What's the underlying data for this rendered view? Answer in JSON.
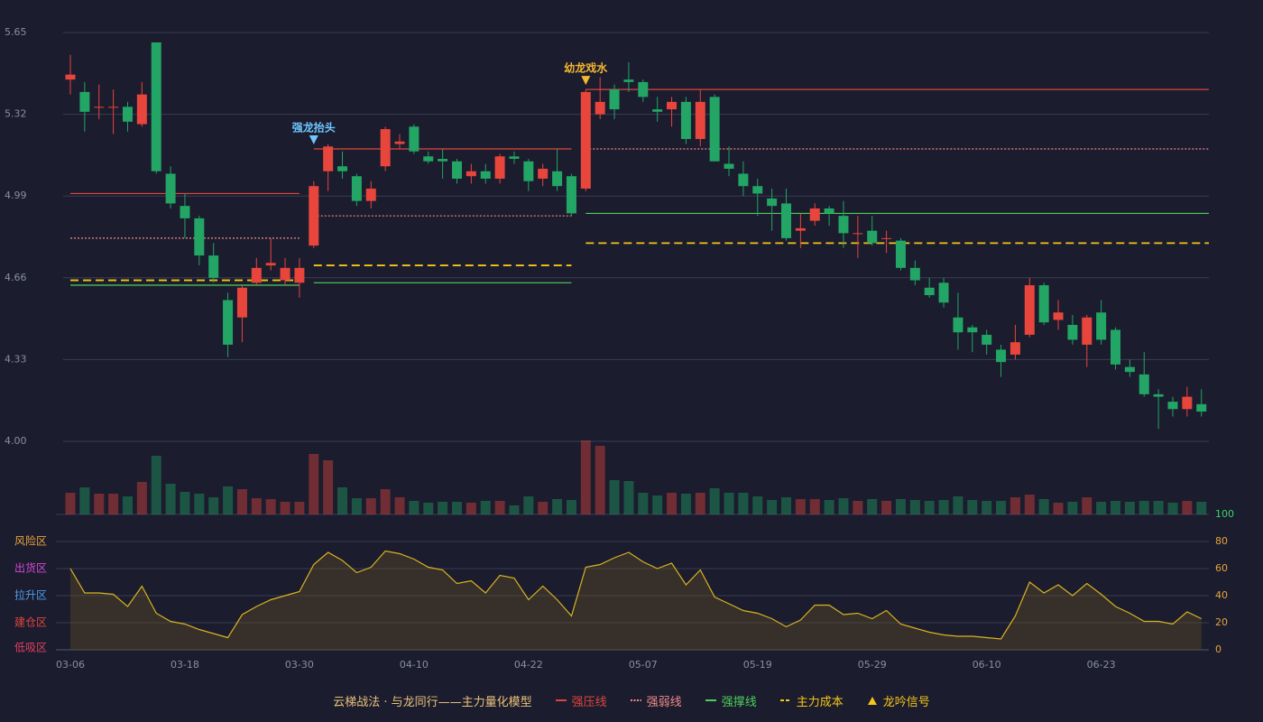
{
  "chart_data": {
    "type": "candlestick",
    "categories": [
      "03-06",
      null,
      null,
      null,
      null,
      null,
      null,
      null,
      "03-18",
      null,
      null,
      null,
      null,
      null,
      null,
      null,
      "03-30",
      null,
      null,
      null,
      null,
      null,
      null,
      null,
      "04-10",
      null,
      null,
      null,
      null,
      null,
      null,
      null,
      "04-22",
      null,
      null,
      null,
      null,
      null,
      null,
      null,
      "05-07",
      null,
      null,
      null,
      null,
      null,
      null,
      null,
      "05-19",
      null,
      null,
      null,
      null,
      null,
      null,
      null,
      "05-29",
      null,
      null,
      null,
      null,
      null,
      null,
      null,
      "06-10",
      null,
      null,
      null,
      null,
      null,
      null,
      null,
      "06-23",
      null,
      null,
      null,
      null,
      null,
      null,
      null
    ],
    "open": [
      5.46,
      5.41,
      5.35,
      5.35,
      5.35,
      5.28,
      5.61,
      5.08,
      4.95,
      4.9,
      4.75,
      4.57,
      4.5,
      4.64,
      4.71,
      4.65,
      4.64,
      4.79,
      5.09,
      5.11,
      5.07,
      4.97,
      5.11,
      5.2,
      5.27,
      5.15,
      5.14,
      5.13,
      5.07,
      5.09,
      5.06,
      5.15,
      5.13,
      5.06,
      5.09,
      5.07,
      5.02,
      5.32,
      5.42,
      5.46,
      5.45,
      5.34,
      5.34,
      5.37,
      5.22,
      5.39,
      5.12,
      5.08,
      5.03,
      4.98,
      4.96,
      4.85,
      4.89,
      4.94,
      4.91,
      4.84,
      4.85,
      4.82,
      4.81,
      4.7,
      4.62,
      4.64,
      4.5,
      4.46,
      4.43,
      4.37,
      4.35,
      4.43,
      4.63,
      4.49,
      4.47,
      4.39,
      4.52,
      4.45,
      4.3,
      4.27,
      4.19,
      4.16,
      4.13,
      4.15
    ],
    "high": [
      5.56,
      5.45,
      5.44,
      5.42,
      5.37,
      5.45,
      5.61,
      5.11,
      5.0,
      4.91,
      4.8,
      4.6,
      4.63,
      4.74,
      4.82,
      4.74,
      4.74,
      5.05,
      5.2,
      5.17,
      5.08,
      5.05,
      5.27,
      5.24,
      5.28,
      5.17,
      5.18,
      5.14,
      5.12,
      5.12,
      5.16,
      5.17,
      5.14,
      5.12,
      5.18,
      5.08,
      5.42,
      5.47,
      5.44,
      5.53,
      5.46,
      5.39,
      5.39,
      5.39,
      5.42,
      5.4,
      5.19,
      5.13,
      5.06,
      5.02,
      5.02,
      4.92,
      4.96,
      4.95,
      4.97,
      4.91,
      4.91,
      4.85,
      4.82,
      4.73,
      4.66,
      4.66,
      4.6,
      4.47,
      4.45,
      4.39,
      4.47,
      4.66,
      4.64,
      4.57,
      4.51,
      4.51,
      4.57,
      4.46,
      4.33,
      4.36,
      4.21,
      4.18,
      4.22,
      4.21
    ],
    "low": [
      5.4,
      5.25,
      5.3,
      5.24,
      5.25,
      5.27,
      5.08,
      4.94,
      4.82,
      4.71,
      4.64,
      4.34,
      4.4,
      4.63,
      4.69,
      4.63,
      4.58,
      4.78,
      5.01,
      5.06,
      4.95,
      4.94,
      5.09,
      5.18,
      5.16,
      5.12,
      5.06,
      5.04,
      5.04,
      5.04,
      5.04,
      5.12,
      5.01,
      5.03,
      5.01,
      4.91,
      5.01,
      5.3,
      5.3,
      5.41,
      5.37,
      5.29,
      5.27,
      5.2,
      5.19,
      5.13,
      5.07,
      4.99,
      4.91,
      4.85,
      4.81,
      4.78,
      4.87,
      4.87,
      4.78,
      4.74,
      4.79,
      4.76,
      4.69,
      4.63,
      4.58,
      4.54,
      4.37,
      4.36,
      4.35,
      4.26,
      4.33,
      4.42,
      4.47,
      4.45,
      4.39,
      4.3,
      4.39,
      4.29,
      4.26,
      4.18,
      4.05,
      4.1,
      4.1,
      4.1
    ],
    "close": [
      5.48,
      5.33,
      5.35,
      5.35,
      5.29,
      5.4,
      5.09,
      4.96,
      4.9,
      4.75,
      4.66,
      4.39,
      4.62,
      4.7,
      4.72,
      4.7,
      4.7,
      5.03,
      5.19,
      5.09,
      4.97,
      5.02,
      5.26,
      5.21,
      5.17,
      5.13,
      5.13,
      5.06,
      5.09,
      5.06,
      5.15,
      5.14,
      5.05,
      5.1,
      5.03,
      4.92,
      5.41,
      5.37,
      5.34,
      5.45,
      5.39,
      5.33,
      5.37,
      5.22,
      5.37,
      5.13,
      5.1,
      5.03,
      5.0,
      4.95,
      4.82,
      4.86,
      4.94,
      4.92,
      4.84,
      4.84,
      4.8,
      4.82,
      4.7,
      4.65,
      4.59,
      4.56,
      4.44,
      4.44,
      4.39,
      4.32,
      4.4,
      4.63,
      4.48,
      4.52,
      4.41,
      4.5,
      4.41,
      4.31,
      4.28,
      4.19,
      4.18,
      4.13,
      4.18,
      4.12
    ],
    "volume": [
      24,
      30,
      23,
      23,
      20,
      36,
      65,
      34,
      25,
      23,
      19,
      31,
      28,
      18,
      17,
      14,
      14,
      67,
      60,
      30,
      18,
      18,
      28,
      19,
      15,
      13,
      14,
      14,
      13,
      15,
      15,
      10,
      20,
      14,
      17,
      16,
      82,
      76,
      38,
      37,
      24,
      21,
      24,
      23,
      24,
      29,
      24,
      24,
      20,
      16,
      19,
      17,
      17,
      16,
      18,
      15,
      17,
      15,
      17,
      16,
      15,
      16,
      20,
      16,
      15,
      15,
      19,
      22,
      17,
      13,
      14,
      19,
      14,
      15,
      14,
      15,
      15,
      13,
      15,
      14
    ],
    "indicator": [
      60,
      42,
      42,
      41,
      32,
      47,
      27,
      21,
      19,
      15,
      12,
      9,
      26,
      32,
      37,
      40,
      43,
      63,
      72,
      66,
      57,
      61,
      73,
      71,
      67,
      61,
      59,
      49,
      51,
      42,
      55,
      53,
      37,
      47,
      37,
      25,
      61,
      63,
      68,
      72,
      65,
      60,
      64,
      48,
      59,
      39,
      34,
      29,
      27,
      23,
      17,
      22,
      33,
      33,
      26,
      27,
      23,
      29,
      19,
      16,
      13,
      11,
      10,
      10,
      9,
      8,
      25,
      50,
      42,
      48,
      40,
      49,
      41,
      32,
      27,
      21,
      21,
      19,
      28,
      23
    ],
    "up_color": "#e8453c",
    "down_color": "#22a565",
    "indicator_color": "#d9b31f",
    "ylim": [
      4.0,
      5.65
    ],
    "yticks": [
      {
        "value": 4,
        "label": "4.00"
      },
      4.33,
      4.66,
      4.99,
      5.32,
      5.65
    ],
    "y2lim": [
      0,
      100
    ],
    "y2ticks": [
      0,
      20,
      40,
      60,
      80,
      100
    ],
    "y2tick_colors": [
      "#e8a33c",
      "#e8a33c",
      "#e8a33c",
      "#e8a33c",
      "#e8a33c",
      "#3dd36b"
    ],
    "zones": [
      {
        "label": "风险区",
        "color": "#e8a33c",
        "value": 80
      },
      {
        "label": "出货区",
        "color": "#d447d4",
        "value": 60
      },
      {
        "label": "拉升区",
        "color": "#4f9be8",
        "value": 40
      },
      {
        "label": "建仓区",
        "color": "#e0453c",
        "value": 20
      },
      {
        "label": "低吸区",
        "color": "#e04060",
        "value": 0
      }
    ],
    "levels": [
      {
        "start": 0,
        "end": 16,
        "lines": [
          5.0,
          4.82,
          4.63,
          4.65
        ]
      },
      {
        "start": 17,
        "end": 35,
        "lines": [
          5.18,
          4.91,
          4.64,
          4.71
        ],
        "signal": {
          "label": "强龙抬头",
          "color": "#6ec6ff"
        }
      },
      {
        "start": 36,
        "end": 79,
        "lines": [
          5.42,
          5.18,
          4.92,
          4.8
        ],
        "signal": {
          "label": "幼龙戏水",
          "color": "#f5b830"
        }
      }
    ],
    "legend_title": "云梯战法 · 与龙同行——主力量化模型",
    "legend_title_color": "#e8c27a",
    "legend": [
      {
        "label": "强压线",
        "color": "#e0453c",
        "style": "solid"
      },
      {
        "label": "强弱线",
        "color": "#f08a8a",
        "style": "dotted"
      },
      {
        "label": "强撑线",
        "color": "#4ccf5a",
        "style": "solid"
      },
      {
        "label": "主力成本",
        "color": "#f5c518",
        "style": "dashed"
      },
      {
        "label": "龙吟信号",
        "color": "#f5c518",
        "style": "triangle"
      }
    ]
  }
}
